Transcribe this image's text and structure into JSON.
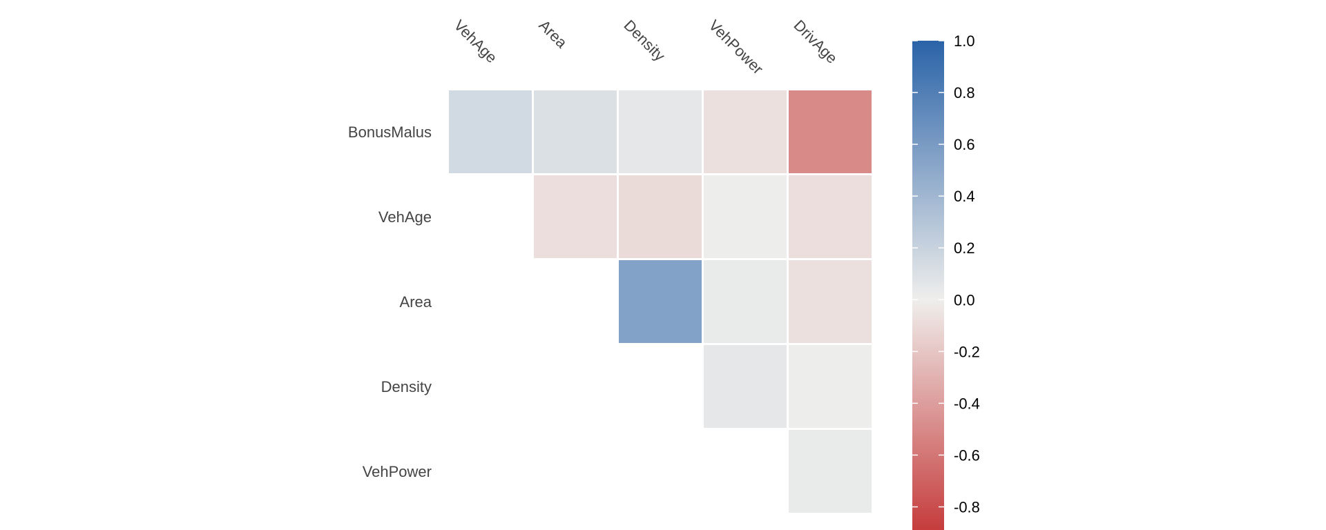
{
  "chart_data": {
    "type": "heatmap",
    "title": "",
    "x_labels": [
      "VehAge",
      "Area",
      "Density",
      "VehPower",
      "DrivAge"
    ],
    "y_labels": [
      "BonusMalus",
      "VehAge",
      "Area",
      "Density",
      "VehPower"
    ],
    "layout": "upper-triangular",
    "values": [
      [
        0.15,
        0.1,
        0.05,
        -0.07,
        -0.5
      ],
      [
        null,
        -0.08,
        -0.1,
        0.01,
        -0.08
      ],
      [
        null,
        null,
        0.55,
        0.03,
        -0.07
      ],
      [
        null,
        null,
        null,
        0.05,
        0.01
      ],
      [
        null,
        null,
        null,
        null,
        0.03
      ]
    ],
    "colorbar": {
      "min": -0.9,
      "max": 1.0,
      "ticks": [
        "1.0",
        "0.8",
        "0.6",
        "0.4",
        "0.2",
        "0.0",
        "-0.2",
        "-0.4",
        "-0.6",
        "-0.8"
      ],
      "tick_values": [
        1.0,
        0.8,
        0.6,
        0.4,
        0.2,
        0.0,
        -0.2,
        -0.4,
        -0.6,
        -0.8
      ]
    },
    "colors": {
      "positive": "#2a63a8",
      "neutral": "#efeeec",
      "negative": "#c53a3a",
      "grid_line": "#ffffff"
    },
    "grid": false,
    "legend": "right"
  }
}
